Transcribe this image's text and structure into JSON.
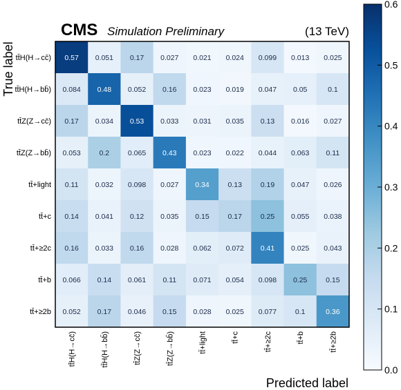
{
  "header": {
    "experiment": "CMS",
    "subtitle": "Simulation Preliminary",
    "energy": "(13 TeV)"
  },
  "chart_data": {
    "type": "heatmap",
    "xlabel": "Predicted label",
    "ylabel": "True label",
    "labels": [
      "tt̄H(H→cc̄)",
      "tt̄H(H→bb̄)",
      "tt̄Z(Z→cc̄)",
      "tt̄Z(Z→bb̄)",
      "tt̄+light",
      "tt̄+c",
      "tt̄+≥2c",
      "tt̄+b",
      "tt̄+≥2b"
    ],
    "values": [
      [
        0.57,
        0.051,
        0.17,
        0.027,
        0.021,
        0.024,
        0.099,
        0.013,
        0.025
      ],
      [
        0.084,
        0.48,
        0.052,
        0.16,
        0.023,
        0.019,
        0.047,
        0.05,
        0.1
      ],
      [
        0.17,
        0.034,
        0.53,
        0.033,
        0.031,
        0.035,
        0.13,
        0.016,
        0.027
      ],
      [
        0.053,
        0.2,
        0.065,
        0.43,
        0.023,
        0.022,
        0.044,
        0.063,
        0.11
      ],
      [
        0.11,
        0.032,
        0.098,
        0.027,
        0.34,
        0.13,
        0.19,
        0.047,
        0.026
      ],
      [
        0.14,
        0.041,
        0.12,
        0.035,
        0.15,
        0.17,
        0.25,
        0.055,
        0.038
      ],
      [
        0.16,
        0.033,
        0.16,
        0.028,
        0.062,
        0.072,
        0.41,
        0.025,
        0.043
      ],
      [
        0.066,
        0.14,
        0.061,
        0.11,
        0.071,
        0.054,
        0.098,
        0.25,
        0.15
      ],
      [
        0.052,
        0.17,
        0.046,
        0.15,
        0.028,
        0.025,
        0.077,
        0.1,
        0.36
      ]
    ],
    "colorbar": {
      "range": [
        0.0,
        0.6
      ],
      "ticks": [
        "0.0",
        "0.1",
        "0.2",
        "0.3",
        "0.4",
        "0.5",
        "0.6"
      ],
      "colormap": "Blues"
    }
  }
}
